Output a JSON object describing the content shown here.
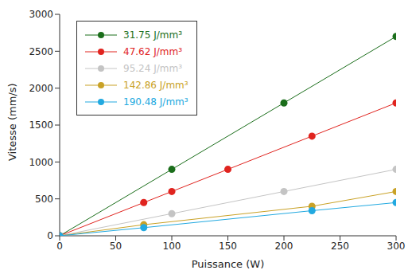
{
  "chart_data": {
    "type": "line",
    "marker": "circle",
    "line_style": "solid",
    "legend": "upper left",
    "grid": false,
    "x_label": "Puissance (W)",
    "y_label": "Vitesse (mm/s)",
    "xlim": [
      0,
      300
    ],
    "xticks": [
      0,
      50,
      100,
      150,
      200,
      250,
      300
    ],
    "ylim": [
      0,
      3000
    ],
    "yticks": [
      0,
      500,
      1000,
      1500,
      2000,
      2500,
      3000
    ],
    "series": [
      {
        "name": "31.75 J/mm³",
        "color": "#1b6e1b",
        "x": [
          0,
          100,
          200,
          300
        ],
        "values": [
          0,
          900,
          1800,
          2700
        ]
      },
      {
        "name": "47.62 J/mm³",
        "color": "#e0241f",
        "x": [
          0,
          75,
          100,
          150,
          225,
          300
        ],
        "values": [
          0,
          450,
          600,
          900,
          1350,
          1800
        ]
      },
      {
        "name": "95.24 J/mm³",
        "color": "#c4c4c4",
        "x": [
          0,
          100,
          200,
          300
        ],
        "values": [
          0,
          300,
          600,
          900
        ]
      },
      {
        "name": "142.86 J/mm³",
        "color": "#c9a227",
        "x": [
          0,
          75,
          225,
          300
        ],
        "values": [
          0,
          150,
          400,
          600
        ]
      },
      {
        "name": "190.48 J/mm³",
        "color": "#22a9e0",
        "x": [
          0,
          75,
          225,
          300
        ],
        "values": [
          0,
          110,
          340,
          450
        ]
      }
    ]
  }
}
